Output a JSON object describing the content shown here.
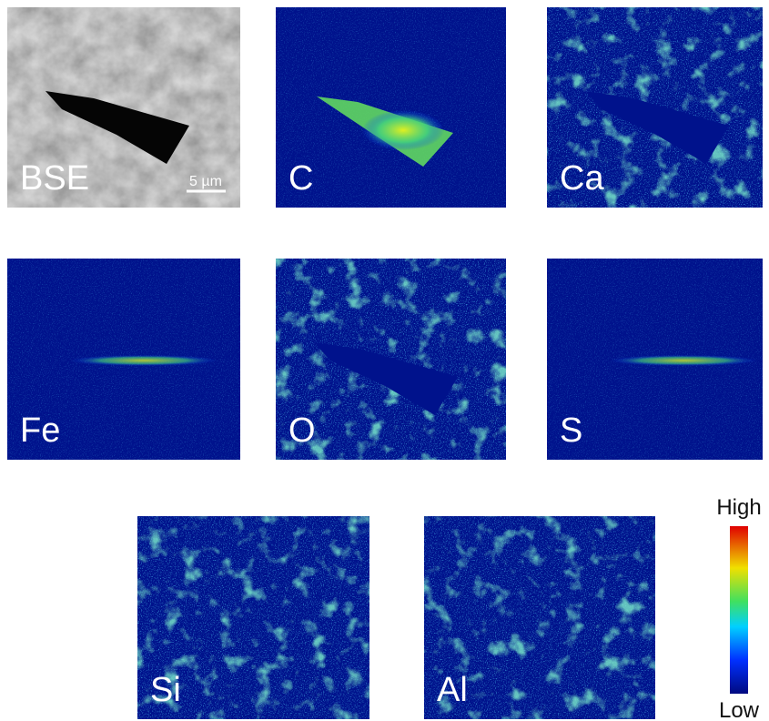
{
  "panels": [
    {
      "label": "BSE",
      "scale_bar": "5 µm"
    },
    {
      "label": "C"
    },
    {
      "label": "Ca"
    },
    {
      "label": "Fe"
    },
    {
      "label": "O"
    },
    {
      "label": "S"
    },
    {
      "label": "Si"
    },
    {
      "label": "Al"
    }
  ],
  "colorbar": {
    "high": "High",
    "low": "Low"
  }
}
